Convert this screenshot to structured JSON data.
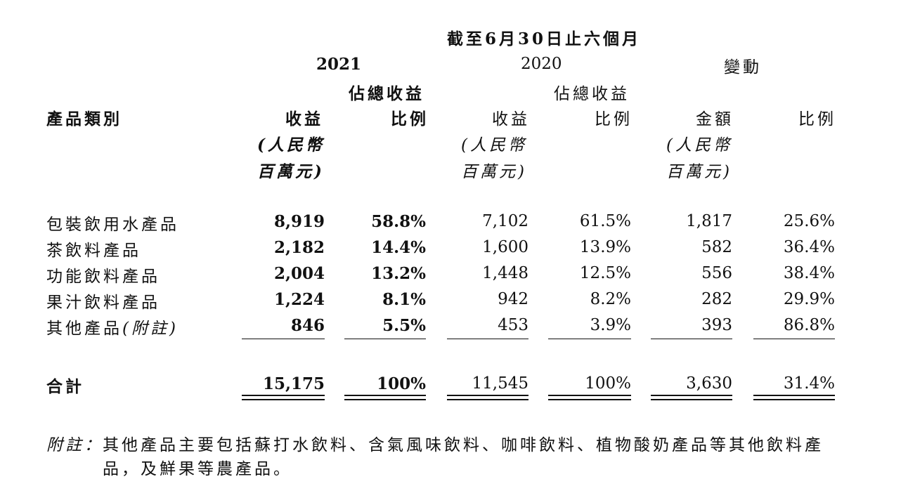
{
  "header": {
    "period": "截至6月30日止六個月",
    "year_2021": "2021",
    "year_2020": "2020",
    "change": "變動",
    "share_label": "佔總收益",
    "category": "產品類別",
    "revenue": "收益",
    "ratio": "比例",
    "amount": "金額",
    "unit_line1": "(人民幣",
    "unit_line2": "百萬元)"
  },
  "rows": [
    {
      "name": "包裝飲用水產品",
      "rev2021": "8,919",
      "pct2021": "58.8%",
      "rev2020": "7,102",
      "pct2020": "61.5%",
      "chg_amt": "1,817",
      "chg_pct": "25.6%"
    },
    {
      "name": "茶飲料產品",
      "rev2021": "2,182",
      "pct2021": "14.4%",
      "rev2020": "1,600",
      "pct2020": "13.9%",
      "chg_amt": "582",
      "chg_pct": "36.4%"
    },
    {
      "name": "功能飲料產品",
      "rev2021": "2,004",
      "pct2021": "13.2%",
      "rev2020": "1,448",
      "pct2020": "12.5%",
      "chg_amt": "556",
      "chg_pct": "38.4%"
    },
    {
      "name": "果汁飲料產品",
      "rev2021": "1,224",
      "pct2021": "8.1%",
      "rev2020": "942",
      "pct2020": "8.2%",
      "chg_amt": "282",
      "chg_pct": "29.9%"
    },
    {
      "name": "其他產品",
      "name_note": "(附註)",
      "rev2021": "846",
      "pct2021": "5.5%",
      "rev2020": "453",
      "pct2020": "3.9%",
      "chg_amt": "393",
      "chg_pct": "86.8%"
    }
  ],
  "total": {
    "name": "合計",
    "rev2021": "15,175",
    "pct2021": "100%",
    "rev2020": "11,545",
    "pct2020": "100%",
    "chg_amt": "3,630",
    "chg_pct": "31.4%"
  },
  "note": {
    "label": "附註：",
    "line1": "其他產品主要包括蘇打水飲料、含氣風味飲料、咖啡飲料、植物酸奶產品等其他飲料產",
    "line2": "品，及鮮果等農產品。"
  }
}
